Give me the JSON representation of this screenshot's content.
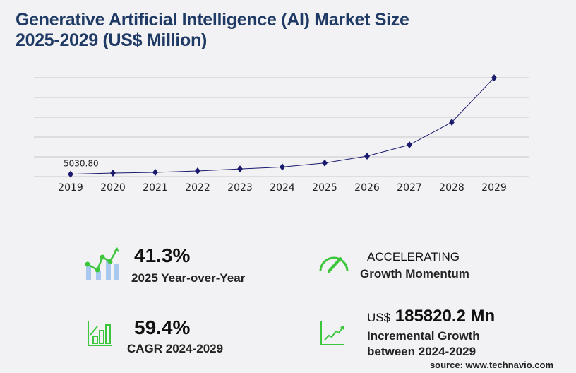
{
  "title": {
    "line1": "Generative Artificial Intelligence (AI) Market Size",
    "line2": "2025-2029 (US$ Million)"
  },
  "chart_data": {
    "type": "line",
    "title": "Generative Artificial Intelligence (AI) Market Size 2025-2029 (US$ Million)",
    "categories": [
      "2019",
      "2020",
      "2021",
      "2022",
      "2023",
      "2024",
      "2025",
      "2026",
      "2027",
      "2028",
      "2029"
    ],
    "values": [
      5030.8,
      7400,
      8800,
      11800,
      16000,
      20045,
      28324,
      42700,
      66200,
      113300,
      205865
    ],
    "data_labels": {
      "2019": "5030.80"
    },
    "ylim": [
      0,
      206000
    ],
    "grid": true,
    "y_tick_labels": false,
    "line_color": "#1a1a6e"
  },
  "stats": {
    "yoy_value": "41.3%",
    "yoy_label": "2025 Year-over-Year",
    "momentum_value": "ACCELERATING",
    "momentum_label": "Growth Momentum",
    "cagr_value": "59.4%",
    "cagr_label": "CAGR 2024-2029",
    "incr_prefix": "US$",
    "incr_value": "185820.2 Mn",
    "incr_label1": "Incremental Growth",
    "incr_label2": "between 2024-2029"
  },
  "colors": {
    "accent_green": "#3cc63c",
    "light_blue": "#a9c8f0",
    "title": "#1f3a64"
  },
  "source": "source: www.technavio.com"
}
